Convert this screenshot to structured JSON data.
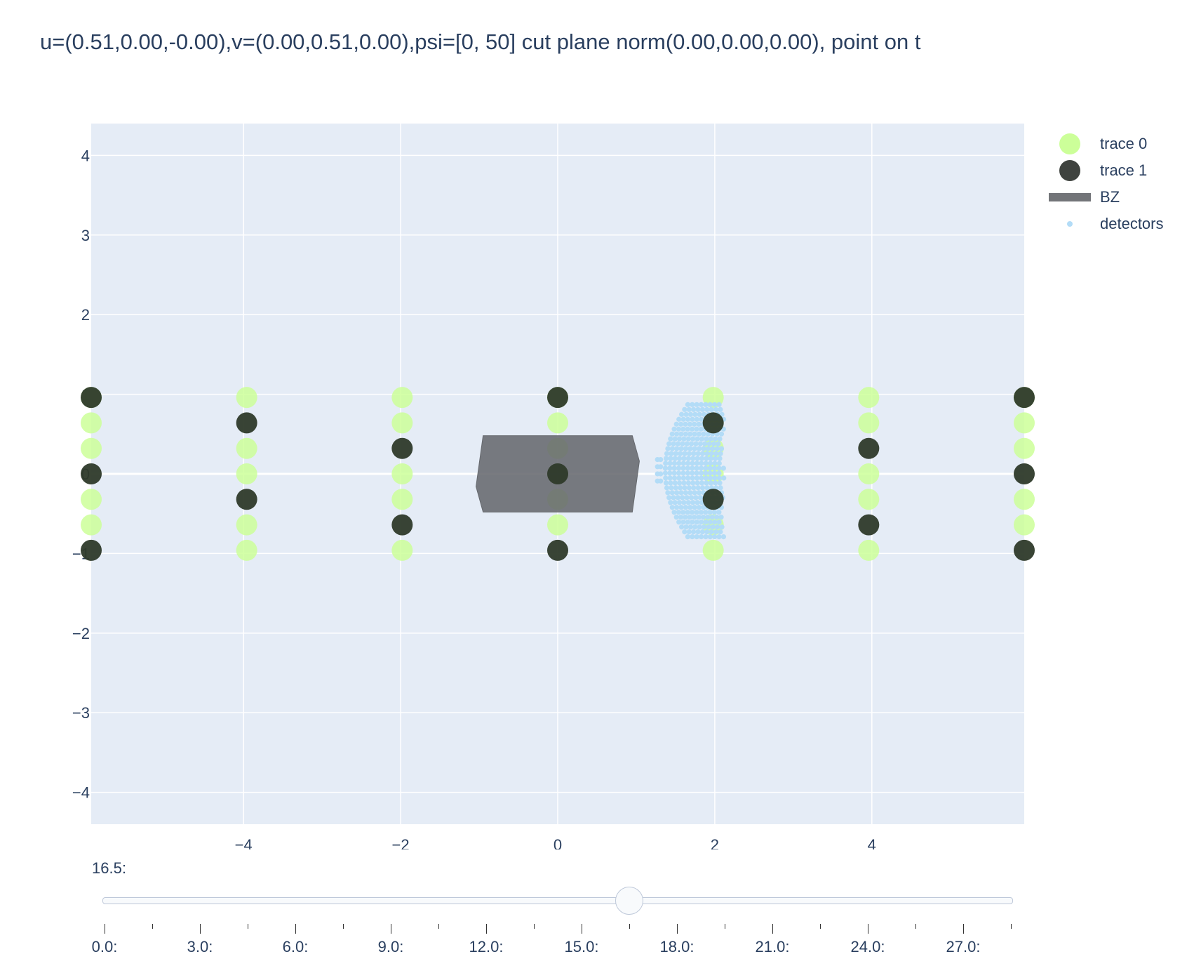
{
  "title": "u=(0.51,0.00,-0.00),v=(0.00,0.51,0.00),psi=[0, 50] cut plane norm(0.00,0.00,0.00), point on t",
  "colors": {
    "plot_bg": "#e5ecf6",
    "grid": "#ffffff",
    "trace0": "#ccff99",
    "trace1": "#2e3a2a",
    "bz": "#66696e",
    "detectors": "#b3dcf7",
    "text": "#2a3f5f"
  },
  "chart_data": {
    "type": "scatter",
    "xlim": [
      -5.94,
      5.94
    ],
    "ylim": [
      -4.4,
      4.4
    ],
    "x_ticks": [
      -4,
      -2,
      0,
      2,
      4
    ],
    "x_tick_labels": [
      "−4",
      "−2",
      "0",
      "2",
      "4"
    ],
    "y_ticks": [
      -4,
      -3,
      -2,
      -1,
      0,
      1,
      2,
      3,
      4
    ],
    "y_tick_labels": [
      "−4",
      "−3",
      "−2",
      "−1",
      "0",
      "1",
      "2",
      "3",
      "4"
    ],
    "grid": true,
    "legend_position": "right",
    "series": [
      {
        "name": "trace 0",
        "color": "#ccff99",
        "x": [
          -5.94,
          -5.94,
          -5.94,
          -5.94,
          -5.94,
          -3.96,
          -3.96,
          -3.96,
          -3.96,
          -3.96,
          -1.98,
          -1.98,
          -1.98,
          -1.98,
          -1.98,
          0,
          0,
          0,
          0,
          0,
          1.98,
          1.98,
          1.98,
          1.98,
          1.98,
          1.98,
          3.96,
          3.96,
          3.96,
          3.96,
          3.96,
          5.94,
          5.94,
          5.94,
          5.94,
          5.94
        ],
        "y": [
          0.64,
          0.32,
          -0.32,
          -0.64,
          0.96,
          0.96,
          0.32,
          0,
          -0.64,
          -0.96,
          0.96,
          0.64,
          0,
          -0.32,
          -0.96,
          0.64,
          0.32,
          -0.32,
          -0.64,
          0.96,
          0.96,
          0.32,
          0,
          -0.64,
          -0.96,
          0.64,
          0.96,
          0.64,
          0,
          -0.32,
          -0.96,
          0.64,
          0.32,
          -0.32,
          -0.64,
          0.96
        ]
      },
      {
        "name": "trace 1",
        "color": "#2e3a2a",
        "x": [
          -5.94,
          -5.94,
          -5.94,
          -3.96,
          -3.96,
          -1.98,
          -1.98,
          0,
          0,
          0,
          1.98,
          1.98,
          3.96,
          3.96,
          5.94,
          5.94,
          5.94
        ],
        "y": [
          0.96,
          0,
          -0.96,
          0.64,
          -0.32,
          0.32,
          -0.64,
          0.96,
          0,
          -0.96,
          0.64,
          -0.32,
          0.32,
          -0.64,
          0.96,
          0,
          -0.96
        ]
      },
      {
        "name": "BZ",
        "type": "polygon",
        "color": "#66696e",
        "x": [
          -0.95,
          0.95,
          1.04,
          0.95,
          -0.95,
          -1.04,
          -0.95
        ],
        "y": [
          0.48,
          0.48,
          0.16,
          -0.48,
          -0.48,
          -0.16,
          0.48
        ]
      },
      {
        "name": "detectors",
        "color": "#b3dcf7",
        "region": {
          "x_range": [
            1.47,
            2.12
          ],
          "y_range": [
            -0.79,
            0.87
          ],
          "small_group_x": 1.27,
          "small_group_y_range": [
            -0.09,
            0.18
          ]
        }
      }
    ]
  },
  "slider": {
    "current_label": "16.5:",
    "current_value": 16.5,
    "min": 0,
    "max": 28.5,
    "step_labels": [
      "0.0:",
      "3.0:",
      "6.0:",
      "9.0:",
      "12.0:",
      "15.0:",
      "18.0:",
      "21.0:",
      "24.0:",
      "27.0:"
    ],
    "label_values": [
      0,
      3,
      6,
      9,
      12,
      15,
      18,
      21,
      24,
      27
    ],
    "minor_values": [
      1.5,
      4.5,
      7.5,
      10.5,
      13.5,
      16.5,
      19.5,
      22.5,
      25.5,
      28.5
    ]
  }
}
